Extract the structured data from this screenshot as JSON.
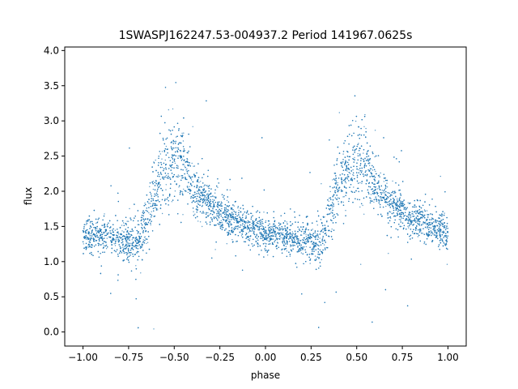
{
  "chart_data": {
    "type": "scatter",
    "title": "1SWASPJ162247.53-004937.2 Period 141967.0625s",
    "xlabel": "phase",
    "ylabel": "flux",
    "xlim": [
      -1.1,
      1.1
    ],
    "ylim": [
      -0.2,
      4.05
    ],
    "xticks": [
      -1.0,
      -0.75,
      -0.5,
      -0.25,
      0.0,
      0.25,
      0.5,
      0.75,
      1.0
    ],
    "xtick_labels": [
      "−1.00",
      "−0.75",
      "−0.50",
      "−0.25",
      "0.00",
      "0.25",
      "0.50",
      "0.75",
      "1.00"
    ],
    "yticks": [
      0.0,
      0.5,
      1.0,
      1.5,
      2.0,
      2.5,
      3.0,
      3.5,
      4.0
    ],
    "ytick_labels": [
      "0.0",
      "0.5",
      "1.0",
      "1.5",
      "2.0",
      "2.5",
      "3.0",
      "3.5",
      "4.0"
    ],
    "grid": false,
    "point_color": "#1f77b4",
    "phase_folded": true,
    "series": [
      {
        "x": [
          -1.0,
          -0.9,
          -0.8,
          -0.7,
          -0.65,
          -0.6,
          -0.55,
          -0.5,
          -0.45,
          -0.4,
          -0.3,
          -0.2,
          -0.1,
          0.0,
          0.1,
          0.2,
          0.3,
          0.35,
          0.4,
          0.45,
          0.5,
          0.55,
          0.6,
          0.7,
          0.8,
          0.9,
          1.0
        ],
        "y": [
          1.35,
          1.38,
          1.32,
          1.25,
          1.6,
          2.1,
          2.35,
          2.45,
          2.4,
          2.05,
          1.8,
          1.62,
          1.5,
          1.4,
          1.35,
          1.3,
          1.25,
          1.6,
          2.1,
          2.35,
          2.45,
          2.4,
          2.05,
          1.8,
          1.62,
          1.5,
          1.4
        ],
        "scatter": [
          0.22,
          0.22,
          0.24,
          0.3,
          0.4,
          0.42,
          0.45,
          0.5,
          0.5,
          0.35,
          0.25,
          0.22,
          0.22,
          0.22,
          0.22,
          0.24,
          0.3,
          0.4,
          0.42,
          0.45,
          0.5,
          0.5,
          0.35,
          0.25,
          0.22,
          0.22,
          0.22
        ]
      }
    ]
  }
}
